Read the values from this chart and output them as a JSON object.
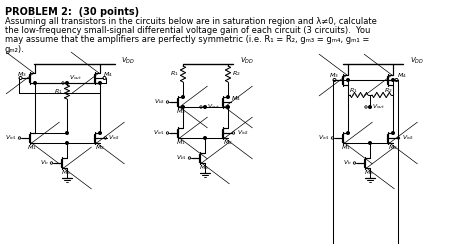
{
  "fig_w": 4.74,
  "fig_h": 2.44,
  "dpi": 100,
  "header_bold": "PROBLEM 2:  (30 points)",
  "header_lines": [
    "Assuming all transistors in the circuits below are in saturation region and λ≠0, calculate",
    "the low-frequency small-signal differential voltage gain of each circuit (3 circuits).  You",
    "may assume that the amplifiers are perfectly symmetric (i.e. R₁ = R₂, gₘ₃ = gₘ₄, gₘ₁ =",
    "gₘ₂)."
  ],
  "bg": "#ffffff"
}
